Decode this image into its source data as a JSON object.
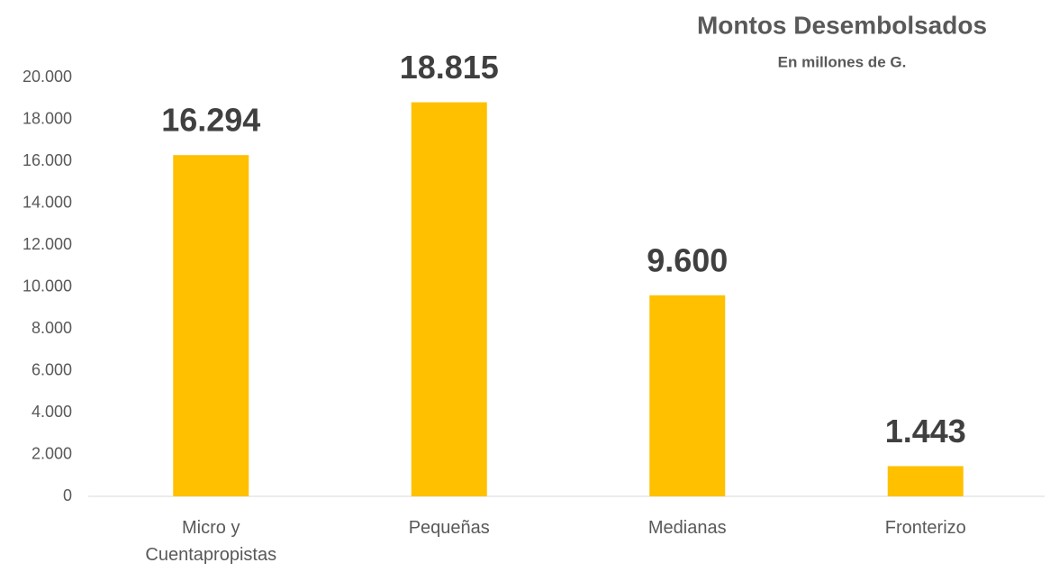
{
  "chart_data": {
    "type": "bar",
    "title": "Montos Desembolsados",
    "subtitle": "En millones de G.",
    "categories": [
      "Micro y Cuentapropistas",
      "Pequeñas",
      "Medianas",
      "Fronterizo"
    ],
    "values": [
      16294,
      18815,
      9600,
      1443
    ],
    "value_labels": [
      "16.294",
      "18.815",
      "9.600",
      "1.443"
    ],
    "color": "#ffc000",
    "ylim": [
      0,
      20000
    ],
    "yticks": [
      0,
      {
        "value": 2000,
        "label": "2.000"
      },
      {
        "value": 4000,
        "label": "4.000"
      },
      {
        "value": 6000,
        "label": "6.000"
      },
      {
        "value": 8000,
        "label": "8.000"
      },
      {
        "value": 10000,
        "label": "10.000"
      },
      {
        "value": 12000,
        "label": "12.000"
      },
      {
        "value": 14000,
        "label": "14.000"
      },
      {
        "value": 16000,
        "label": "16.000"
      },
      {
        "value": 18000,
        "label": "18.000"
      },
      {
        "value": 20000,
        "label": "20.000"
      }
    ],
    "grid": false
  }
}
